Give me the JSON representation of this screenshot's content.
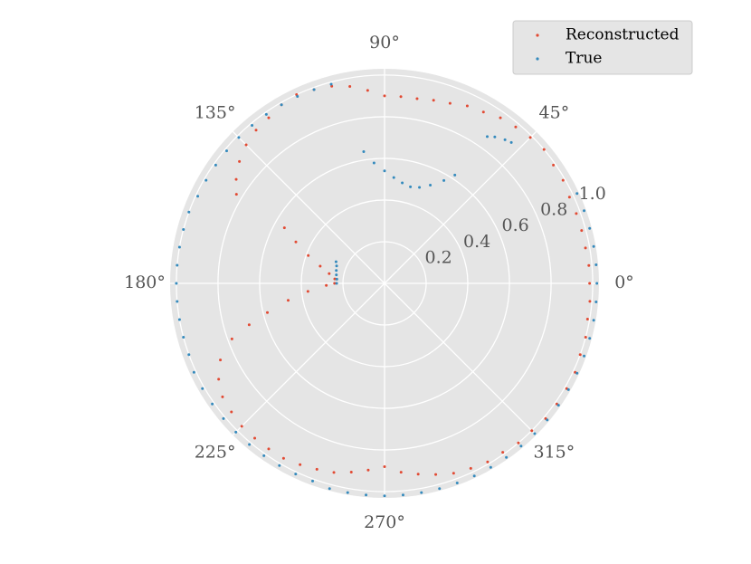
{
  "chart_data": {
    "type": "polar-scatter",
    "xlim": [
      0,
      360
    ],
    "ylim": [
      0,
      1.03
    ],
    "xticks": [
      {
        "value": 0,
        "label": "0°"
      },
      {
        "value": 45,
        "label": "45°"
      },
      {
        "value": 90,
        "label": "90°"
      },
      {
        "value": 135,
        "label": "135°"
      },
      {
        "value": 180,
        "label": "180°"
      },
      {
        "value": 225,
        "label": "225°"
      },
      {
        "value": 270,
        "label": "270°"
      },
      {
        "value": 315,
        "label": "315°"
      }
    ],
    "yticks": [
      0.2,
      0.4,
      0.6,
      0.8,
      {
        "value": 1,
        "label": "1.0"
      }
    ],
    "grid": true,
    "legend": "upper right",
    "series": [
      {
        "name": "Reconstructed",
        "color": "#E24A33",
        "x": [
          90,
          85,
          80,
          75,
          70,
          65,
          60,
          55,
          50,
          45,
          40,
          35,
          30,
          25,
          20,
          15,
          10,
          5,
          0,
          355,
          350,
          345,
          340,
          335,
          330,
          325,
          320,
          315,
          310,
          305,
          300,
          295,
          290,
          285,
          280,
          275,
          270,
          95,
          100,
          105,
          110,
          115,
          120,
          125,
          130,
          135,
          140,
          145,
          149,
          265,
          260,
          255,
          250,
          245,
          240,
          235,
          230,
          225,
          220,
          215,
          210,
          205,
          200,
          197,
          194,
          190,
          186,
          182,
          180,
          151,
          155,
          160,
          165,
          170,
          175
        ],
        "values": [
          0.9,
          0.9,
          0.9,
          0.91,
          0.92,
          0.94,
          0.95,
          0.97,
          0.98,
          0.99,
          1.0,
          0.99,
          0.99,
          0.98,
          0.98,
          0.98,
          0.98,
          0.985,
          0.985,
          0.99,
          0.99,
          1.0,
          1.0,
          1.01,
          1.01,
          1.01,
          1.01,
          1.0,
          1.0,
          0.99,
          0.99,
          0.98,
          0.97,
          0.95,
          0.93,
          0.91,
          0.88,
          0.93,
          0.96,
          0.98,
          0.99,
          1.0,
          0.99,
          0.97,
          0.96,
          0.94,
          0.91,
          0.87,
          0.83,
          0.9,
          0.92,
          0.94,
          0.95,
          0.96,
          0.97,
          0.97,
          0.97,
          0.97,
          0.96,
          0.95,
          0.92,
          0.87,
          0.78,
          0.68,
          0.58,
          0.47,
          0.37,
          0.28,
          0.24,
          0.55,
          0.47,
          0.39,
          0.32,
          0.27,
          0.24
        ]
      },
      {
        "name": "True",
        "color": "#348ABD",
        "x": [
          105,
          110,
          115,
          120,
          125,
          130,
          135,
          140,
          145,
          150,
          155,
          160,
          165,
          170,
          175,
          180,
          185,
          190,
          195,
          200,
          205,
          210,
          215,
          220,
          225,
          230,
          235,
          240,
          245,
          250,
          255,
          260,
          265,
          270,
          275,
          280,
          285,
          290,
          295,
          300,
          305,
          310,
          315,
          320,
          325,
          330,
          335,
          340,
          345,
          350,
          355,
          0,
          5,
          10,
          15,
          20,
          25,
          99,
          95,
          90,
          85,
          80,
          75,
          70,
          65,
          60,
          57,
          48,
          50,
          53,
          55,
          180,
          175,
          170,
          165,
          160,
          156
        ],
        "values": [
          0.99,
          0.99,
          0.99,
          0.99,
          0.99,
          0.99,
          0.99,
          0.99,
          0.99,
          0.99,
          0.99,
          1.0,
          1.0,
          1.0,
          1.0,
          1.0,
          1.0,
          1.0,
          1.0,
          1.0,
          1.01,
          1.01,
          1.01,
          1.01,
          1.01,
          1.01,
          1.01,
          1.01,
          1.01,
          1.01,
          1.02,
          1.02,
          1.02,
          1.02,
          1.02,
          1.02,
          1.02,
          1.02,
          1.02,
          1.02,
          1.02,
          1.02,
          1.02,
          1.02,
          1.02,
          1.02,
          1.02,
          1.02,
          1.02,
          1.02,
          1.02,
          1.02,
          1.02,
          1.02,
          1.02,
          1.02,
          1.02,
          0.64,
          0.58,
          0.54,
          0.51,
          0.49,
          0.48,
          0.49,
          0.52,
          0.57,
          0.62,
          0.91,
          0.9,
          0.88,
          0.86,
          0.23,
          0.23,
          0.235,
          0.24,
          0.245,
          0.255
        ]
      }
    ]
  }
}
